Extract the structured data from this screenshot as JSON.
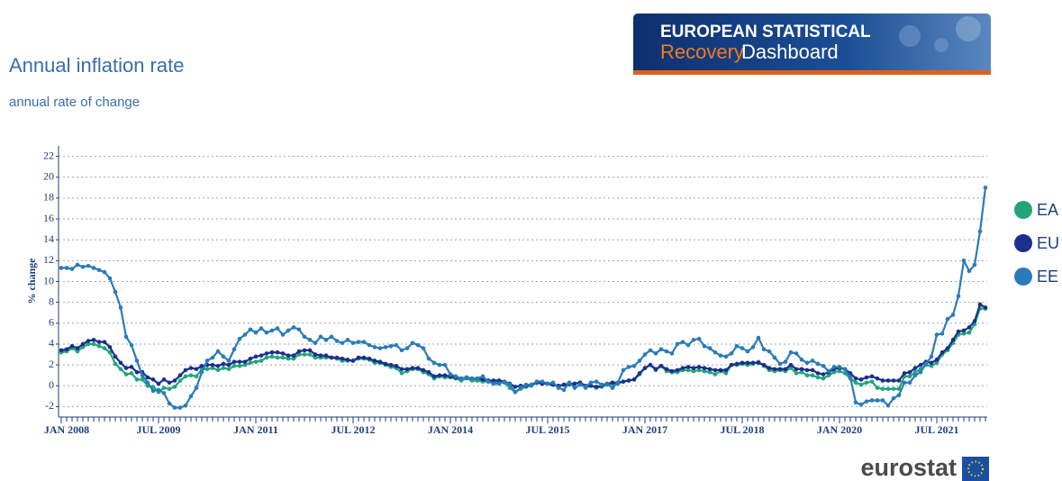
{
  "chart_data": {
    "type": "line",
    "title": "Annual inflation rate",
    "subtitle": "annual rate of change",
    "y_label": "% change",
    "categories": [
      "JAN 2008",
      null,
      null,
      null,
      null,
      null,
      null,
      null,
      null,
      null,
      null,
      null,
      null,
      null,
      null,
      null,
      null,
      null,
      "JUL 2009",
      null,
      null,
      null,
      null,
      null,
      null,
      null,
      null,
      null,
      null,
      null,
      null,
      null,
      null,
      null,
      null,
      null,
      "JAN 2011",
      null,
      null,
      null,
      null,
      null,
      null,
      null,
      null,
      null,
      null,
      null,
      null,
      null,
      null,
      null,
      null,
      null,
      "JUL 2012",
      null,
      null,
      null,
      null,
      null,
      null,
      null,
      null,
      null,
      null,
      null,
      null,
      null,
      null,
      null,
      null,
      null,
      "JAN 2014",
      null,
      null,
      null,
      null,
      null,
      null,
      null,
      null,
      null,
      null,
      null,
      null,
      null,
      null,
      null,
      null,
      null,
      "JUL 2015",
      null,
      null,
      null,
      null,
      null,
      null,
      null,
      null,
      null,
      null,
      null,
      null,
      null,
      null,
      null,
      null,
      null,
      "JAN 2017",
      null,
      null,
      null,
      null,
      null,
      null,
      null,
      null,
      null,
      null,
      null,
      null,
      null,
      null,
      null,
      null,
      null,
      "JUL 2018",
      null,
      null,
      null,
      null,
      null,
      null,
      null,
      null,
      null,
      null,
      null,
      null,
      null,
      null,
      null,
      null,
      null,
      "JAN 2020",
      null,
      null,
      null,
      null,
      null,
      null,
      null,
      null,
      null,
      null,
      null,
      null,
      null,
      null,
      null,
      null,
      null,
      "JUL 2021",
      null,
      null,
      null,
      null,
      null,
      null,
      null,
      null,
      null
    ],
    "series": [
      {
        "name": "EA",
        "color": "#22a57a",
        "values": [
          3.2,
          3.3,
          3.6,
          3.3,
          3.7,
          4.0,
          4.0,
          3.8,
          3.6,
          3.2,
          2.1,
          1.6,
          1.1,
          1.2,
          0.6,
          0.6,
          0.0,
          -0.1,
          -0.6,
          -0.2,
          -0.3,
          -0.1,
          0.5,
          0.9,
          1.0,
          0.9,
          1.6,
          1.6,
          1.7,
          1.5,
          1.7,
          1.6,
          1.9,
          1.9,
          2.0,
          2.2,
          2.3,
          2.4,
          2.7,
          2.8,
          2.7,
          2.7,
          2.6,
          2.6,
          3.0,
          3.0,
          3.0,
          2.7,
          2.7,
          2.7,
          2.7,
          2.6,
          2.4,
          2.4,
          2.4,
          2.6,
          2.6,
          2.5,
          2.2,
          2.2,
          2.0,
          1.8,
          1.7,
          1.2,
          1.4,
          1.6,
          1.6,
          1.3,
          1.1,
          0.7,
          0.9,
          0.8,
          0.8,
          0.7,
          0.5,
          0.7,
          0.5,
          0.5,
          0.4,
          0.4,
          0.3,
          0.4,
          0.3,
          -0.2,
          -0.6,
          -0.3,
          -0.1,
          0.0,
          0.3,
          0.2,
          0.2,
          0.1,
          -0.1,
          0.1,
          0.1,
          0.2,
          0.3,
          -0.2,
          0.0,
          -0.2,
          -0.1,
          0.1,
          0.2,
          0.2,
          0.4,
          0.5,
          0.6,
          1.1,
          1.7,
          2.0,
          1.5,
          1.9,
          1.4,
          1.3,
          1.3,
          1.5,
          1.5,
          1.4,
          1.5,
          1.4,
          1.3,
          1.1,
          1.4,
          1.2,
          2.0,
          2.0,
          2.1,
          2.0,
          2.1,
          2.3,
          1.9,
          1.5,
          1.4,
          1.5,
          1.4,
          1.7,
          1.2,
          1.3,
          1.0,
          1.0,
          0.8,
          0.7,
          1.0,
          1.3,
          1.4,
          1.2,
          0.7,
          0.3,
          0.1,
          0.3,
          0.4,
          -0.2,
          -0.3,
          -0.3,
          -0.3,
          -0.3,
          0.9,
          0.9,
          1.3,
          1.6,
          2.0,
          1.9,
          2.2,
          3.0,
          3.4,
          4.1,
          4.9,
          5.0,
          5.1,
          5.9,
          7.4,
          7.4
        ]
      },
      {
        "name": "EU",
        "color": "#1b2f8c",
        "values": [
          3.4,
          3.5,
          3.8,
          3.6,
          4.0,
          4.3,
          4.4,
          4.2,
          4.2,
          3.7,
          2.8,
          2.2,
          1.7,
          1.8,
          1.3,
          1.3,
          0.8,
          0.6,
          0.2,
          0.6,
          0.3,
          0.5,
          1.0,
          1.5,
          1.7,
          1.6,
          1.9,
          2.0,
          2.0,
          1.9,
          2.1,
          2.0,
          2.3,
          2.3,
          2.3,
          2.6,
          2.8,
          2.9,
          3.1,
          3.2,
          3.2,
          3.1,
          2.9,
          2.9,
          3.3,
          3.4,
          3.4,
          3.0,
          2.9,
          2.9,
          2.7,
          2.7,
          2.6,
          2.5,
          2.4,
          2.7,
          2.7,
          2.6,
          2.4,
          2.3,
          2.1,
          2.0,
          1.9,
          1.6,
          1.6,
          1.7,
          1.7,
          1.5,
          1.3,
          0.9,
          1.0,
          1.0,
          0.9,
          0.8,
          0.7,
          0.8,
          0.7,
          0.7,
          0.6,
          0.5,
          0.5,
          0.5,
          0.4,
          0.2,
          -0.1,
          0.0,
          0.0,
          0.1,
          0.3,
          0.2,
          0.2,
          0.1,
          0.0,
          0.1,
          0.2,
          0.2,
          0.3,
          0.0,
          0.0,
          -0.1,
          0.0,
          0.2,
          0.3,
          0.3,
          0.4,
          0.5,
          0.6,
          1.2,
          1.7,
          2.0,
          1.6,
          1.9,
          1.6,
          1.4,
          1.5,
          1.7,
          1.8,
          1.7,
          1.8,
          1.7,
          1.6,
          1.5,
          1.5,
          1.5,
          2.0,
          2.1,
          2.2,
          2.2,
          2.2,
          2.2,
          2.0,
          1.7,
          1.6,
          1.6,
          1.6,
          2.0,
          1.6,
          1.6,
          1.5,
          1.5,
          1.2,
          1.1,
          1.3,
          1.6,
          1.7,
          1.6,
          1.2,
          0.7,
          0.6,
          0.8,
          0.9,
          0.7,
          0.5,
          0.5,
          0.5,
          0.5,
          1.2,
          1.3,
          1.7,
          2.0,
          2.3,
          2.2,
          2.5,
          3.2,
          3.6,
          4.4,
          5.2,
          5.3,
          5.6,
          6.2,
          7.8,
          7.5
        ]
      },
      {
        "name": "EE",
        "color": "#2b7bb9",
        "values": [
          11.3,
          11.3,
          11.2,
          11.6,
          11.4,
          11.5,
          11.3,
          11.1,
          10.9,
          10.3,
          9.0,
          7.5,
          4.7,
          3.9,
          2.4,
          1.0,
          0.3,
          -0.5,
          -0.4,
          -0.7,
          -1.7,
          -2.1,
          -2.1,
          -1.9,
          -1.0,
          -0.2,
          1.3,
          2.4,
          2.7,
          3.3,
          2.8,
          2.4,
          3.5,
          4.5,
          4.9,
          5.4,
          5.1,
          5.5,
          5.1,
          5.3,
          5.5,
          4.9,
          5.3,
          5.6,
          5.4,
          4.7,
          4.4,
          4.1,
          4.7,
          4.4,
          4.7,
          4.3,
          4.1,
          4.4,
          4.1,
          4.2,
          4.2,
          3.9,
          3.7,
          3.6,
          3.7,
          3.8,
          3.9,
          3.4,
          3.6,
          4.1,
          3.9,
          3.6,
          2.6,
          2.2,
          2.0,
          2.0,
          1.1,
          0.9,
          0.7,
          0.8,
          0.7,
          0.7,
          0.9,
          0.4,
          0.2,
          0.2,
          0.4,
          0.1,
          -0.6,
          -0.2,
          0.1,
          0.1,
          0.4,
          0.4,
          0.2,
          0.3,
          -0.2,
          -0.4,
          0.3,
          -0.2,
          0.1,
          -0.1,
          0.3,
          0.4,
          0.1,
          0.2,
          -0.2,
          0.3,
          1.5,
          1.8,
          1.9,
          2.4,
          3.0,
          3.4,
          3.1,
          3.5,
          3.3,
          3.1,
          4.0,
          4.2,
          3.9,
          4.4,
          4.5,
          3.8,
          3.6,
          3.2,
          2.9,
          2.8,
          3.1,
          3.8,
          3.6,
          3.3,
          3.7,
          4.6,
          3.5,
          3.3,
          2.7,
          2.1,
          2.3,
          3.2,
          3.1,
          2.5,
          2.2,
          2.4,
          2.1,
          1.9,
          1.4,
          1.8,
          1.8,
          1.6,
          0.8,
          -1.6,
          -1.8,
          -1.5,
          -1.4,
          -1.4,
          -1.4,
          -1.9,
          -1.2,
          -0.9,
          0.3,
          0.3,
          1.0,
          1.3,
          2.1,
          2.8,
          4.9,
          5.0,
          6.4,
          6.8,
          8.6,
          12.0,
          11.0,
          11.6,
          14.8,
          19.0
        ]
      }
    ],
    "ylim": [
      -3,
      23
    ],
    "yticks": [
      -2,
      0,
      2,
      4,
      6,
      8,
      10,
      12,
      14,
      16,
      18,
      20,
      22
    ],
    "grid": true
  },
  "logo": {
    "line1": "EUROPEAN STATISTICAL",
    "recovery": "Recovery",
    "dashboard": "Dashboard"
  },
  "footer": {
    "brand": "eurostat"
  }
}
